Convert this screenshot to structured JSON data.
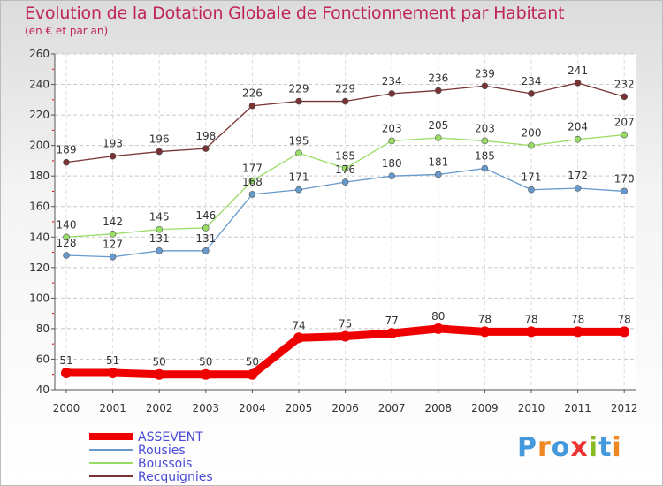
{
  "chart_data": {
    "type": "line",
    "title": "Evolution de la Dotation Globale de Fonctionnement par Habitant",
    "subtitle": "(en € et par an)",
    "x": [
      "2000",
      "2001",
      "2002",
      "2003",
      "2004",
      "2005",
      "2006",
      "2007",
      "2008",
      "2009",
      "2010",
      "2011",
      "2012"
    ],
    "ylim": [
      40,
      260
    ],
    "yticks": [
      40,
      60,
      80,
      100,
      120,
      140,
      160,
      180,
      200,
      220,
      240,
      260
    ],
    "series": [
      {
        "name": "ASSEVENT",
        "color": "#ee0000",
        "values": [
          51,
          51,
          50,
          50,
          50,
          74,
          75,
          77,
          80,
          78,
          78,
          78,
          78
        ]
      },
      {
        "name": "Rousies",
        "color": "#6699cc",
        "values": [
          128,
          127,
          131,
          131,
          168,
          171,
          176,
          180,
          181,
          185,
          171,
          172,
          170
        ]
      },
      {
        "name": "Boussois",
        "color": "#99dd66",
        "values": [
          140,
          142,
          145,
          146,
          177,
          195,
          185,
          203,
          205,
          203,
          200,
          204,
          207
        ]
      },
      {
        "name": "Recquignies",
        "color": "#773333",
        "values": [
          189,
          193,
          196,
          198,
          226,
          229,
          229,
          234,
          236,
          239,
          234,
          241,
          232
        ]
      }
    ]
  },
  "logo": {
    "text": "Proxiti"
  }
}
